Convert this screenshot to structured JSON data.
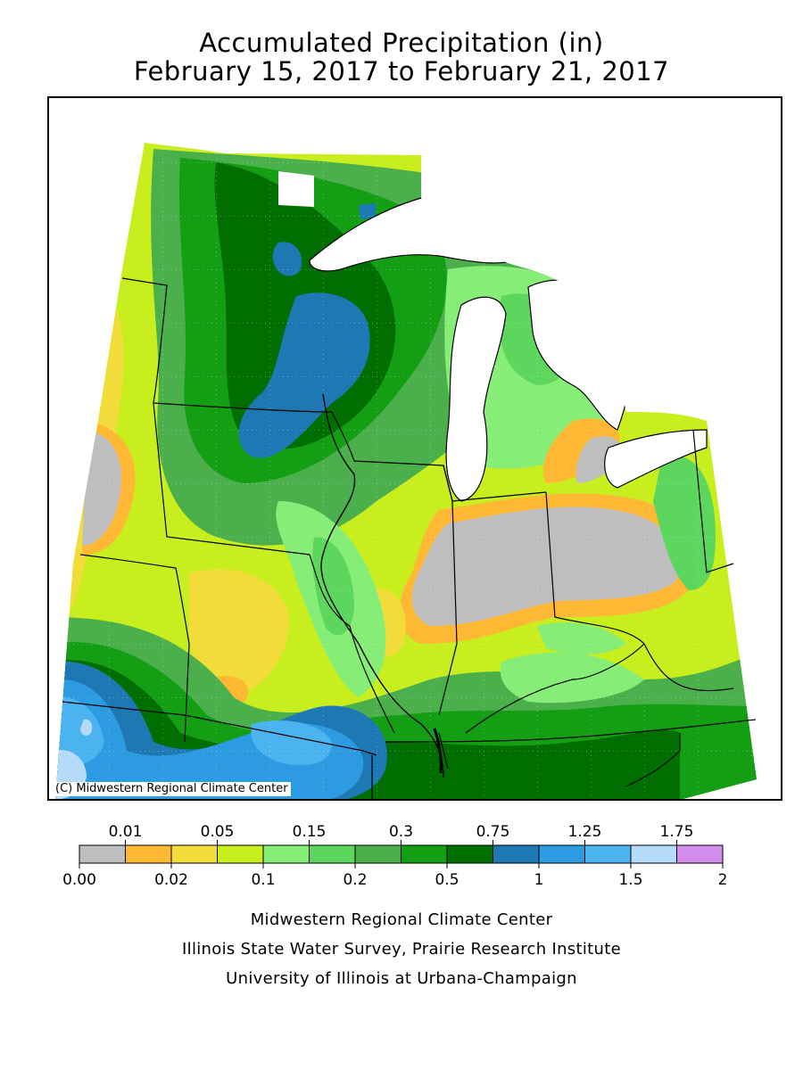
{
  "title": {
    "line1": "Accumulated Precipitation (in)",
    "line2": "February 15, 2017 to February 21, 2017"
  },
  "map": {
    "credit": "(C) Midwestern Regional Climate Center"
  },
  "legend": {
    "top_labels": [
      "0.01",
      "0.05",
      "0.15",
      "0.3",
      "0.75",
      "1.25",
      "1.75"
    ],
    "bottom_labels": [
      "0.00",
      "0.02",
      "0.1",
      "0.2",
      "0.5",
      "1",
      "1.5",
      "2"
    ],
    "colors": [
      "#bebebe",
      "#ffb833",
      "#f2dc3a",
      "#c8ee1e",
      "#86ed76",
      "#5cd65c",
      "#4bb04b",
      "#149e14",
      "#006e00",
      "#1e78b4",
      "#2d9be1",
      "#4bb4f0",
      "#b4dcfa",
      "#d28ceb"
    ]
  },
  "footer": {
    "line1": "Midwestern Regional Climate Center",
    "line2": "Illinois State Water Survey, Prairie Research Institute",
    "line3": "University of Illinois at Urbana-Champaign"
  }
}
